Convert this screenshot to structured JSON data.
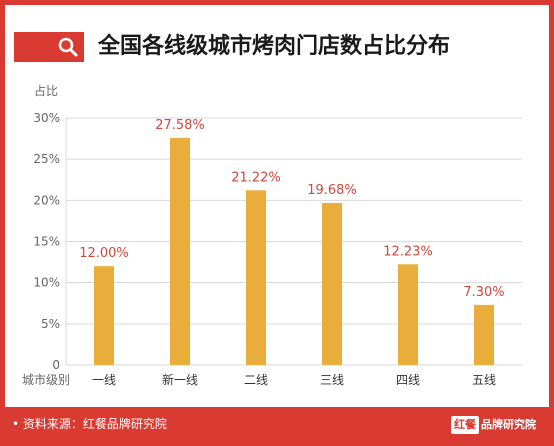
{
  "title": "全国各线级城市烤肉门店数占比分布",
  "icon": "search-icon",
  "colors": {
    "frame": "#d93a31",
    "bar": "#e9ad3b",
    "data_label": "#d0473d",
    "axis_text": "#666666",
    "grid": "#d9d9d9"
  },
  "footer": {
    "source": "• 资料来源：红餐品牌研究院",
    "logo_mark": "红餐",
    "logo_text": "品牌研究院"
  },
  "chart_data": {
    "type": "bar",
    "title": "全国各线级城市烤肉门店数占比分布",
    "ylabel": "占比",
    "xlabel": "城市级别",
    "categories": [
      "一线",
      "新一线",
      "二线",
      "三线",
      "四线",
      "五线"
    ],
    "values": [
      12.0,
      27.58,
      21.22,
      19.68,
      12.23,
      7.3
    ],
    "data_labels": [
      "12.00%",
      "27.58%",
      "21.22%",
      "19.68%",
      "12.23%",
      "7.30%"
    ],
    "ylim": [
      0,
      30
    ],
    "yticks": [
      0,
      5,
      10,
      15,
      20,
      25,
      30
    ],
    "ytick_labels": [
      "0",
      "5%",
      "10%",
      "15%",
      "20%",
      "25%",
      "30%"
    ],
    "grid": true,
    "legend": "none"
  }
}
